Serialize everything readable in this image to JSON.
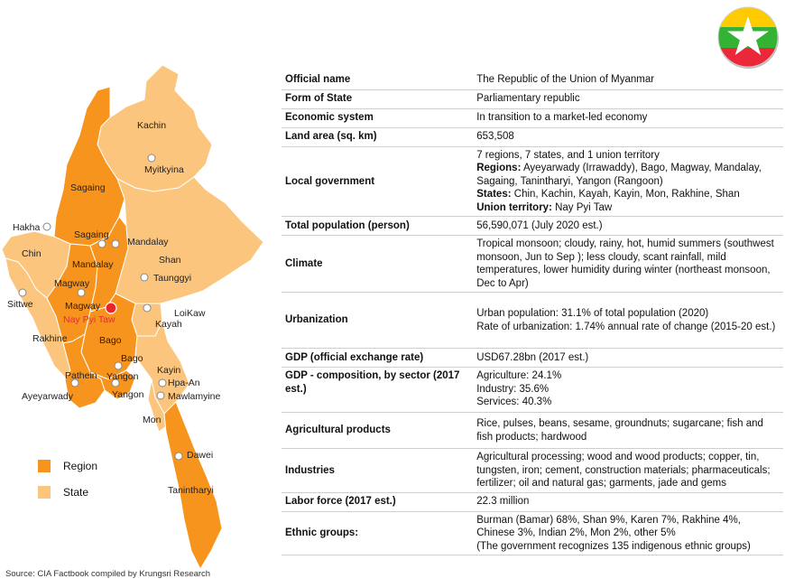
{
  "source": "Source: CIA Factbook compiled by Krungsri Research",
  "legend": [
    {
      "label": "Region",
      "color": "#f7941d"
    },
    {
      "label": "State",
      "color": "#fbc57d"
    }
  ],
  "map": {
    "colors": {
      "region": "#f7941d",
      "state": "#fbc57d",
      "border": "#ffffff",
      "capital": "#e8262c"
    },
    "labels": {
      "kachin": "Kachin",
      "myitkyina": "Myitkyina",
      "sagaing_region": "Sagaing",
      "hakha": "Hakha",
      "sagaing_city": "Sagaing",
      "mandalay_city": "Mandalay",
      "chin": "Chin",
      "shan": "Shan",
      "mandalay_region": "Mandalay",
      "taunggyi": "Taunggyi",
      "magway_region": "Magway",
      "magway_city": "Magway",
      "sittwe": "Sittwe",
      "loikaw": "LoiKaw",
      "nay_pyi_taw": "Nay Pyi Taw",
      "kayah": "Kayah",
      "rakhine": "Rakhine",
      "bago_region": "Bago",
      "bago_city": "Bago",
      "kayin": "Kayin",
      "pathein": "Pathein",
      "yangon_region": "Yangon",
      "hpa_an": "Hpa-An",
      "ayeyarwady": "Ayeyarwady",
      "yangon_city": "Yangon",
      "mawlamyine": "Mawlamyine",
      "mon": "Mon",
      "dawei": "Dawei",
      "tanintharyi": "Tanintharyi"
    }
  },
  "flag": {
    "colors": {
      "top": "#fecb00",
      "middle": "#34b233",
      "bottom": "#ea2839",
      "star": "#ffffff"
    }
  },
  "facts": {
    "official_name": {
      "label": "Official name",
      "value": "The Republic of the Union of Myanmar"
    },
    "form_of_state": {
      "label": "Form of State",
      "value": "Parliamentary republic"
    },
    "economic_system": {
      "label": "Economic system",
      "value": "In transition to a market-led economy"
    },
    "land_area": {
      "label": "Land area (sq. km)",
      "value": "653,508"
    },
    "local_government": {
      "label": "Local government",
      "summary": "7 regions, 7 states, and  1 union territory",
      "regions_label": "Regions:",
      "regions": "Ayeyarwady (Irrawaddy), Bago, Magway, Mandalay, Sagaing, Tanintharyi, Yangon (Rangoon)",
      "states_label": "States:",
      "states": "Chin, Kachin, Kayah, Kayin, Mon, Rakhine, Shan",
      "union_label": "Union territory:",
      "union": "Nay Pyi Taw"
    },
    "total_population": {
      "label": "Total population (person)",
      "value": "56,590,071 (July 2020 est.)"
    },
    "climate": {
      "label": "Climate",
      "value": "Tropical monsoon; cloudy, rainy, hot, humid summers (southwest monsoon, Jun to Sep ); less cloudy, scant rainfall, mild temperatures, lower humidity during winter (northeast monsoon, Dec to Apr)"
    },
    "urbanization": {
      "label": "Urbanization",
      "line1": "Urban population: 31.1% of total population (2020)",
      "line2": "Rate of urbanization: 1.74% annual rate of change (2015-20 est.)"
    },
    "gdp": {
      "label": "GDP (official exchange rate)",
      "value": "USD67.28bn (2017 est.)"
    },
    "gdp_composition": {
      "label": "GDP - composition, by sector (2017 est.)",
      "agriculture": "Agriculture: 24.1%",
      "industry": "Industry: 35.6%",
      "services": "Services: 40.3%"
    },
    "agricultural_products": {
      "label": "Agricultural products",
      "value": "Rice, pulses, beans, sesame, groundnuts; sugarcane; fish and fish products; hardwood"
    },
    "industries": {
      "label": "Industries",
      "value": "Agricultural processing; wood and wood products; copper, tin, tungsten, iron; cement, construction materials; pharmaceuticals; fertilizer; oil and natural gas; garments, jade and gems"
    },
    "labor_force": {
      "label": "Labor force (2017 est.)",
      "value": "22.3 million"
    },
    "ethnic_groups": {
      "label": "Ethnic groups:",
      "line1": "Burman (Bamar) 68%, Shan 9%, Karen 7%, Rakhine 4%, Chinese 3%, Indian 2%, Mon 2%, other 5%",
      "line2": "(The government recognizes 135 indigenous ethnic groups)"
    }
  }
}
